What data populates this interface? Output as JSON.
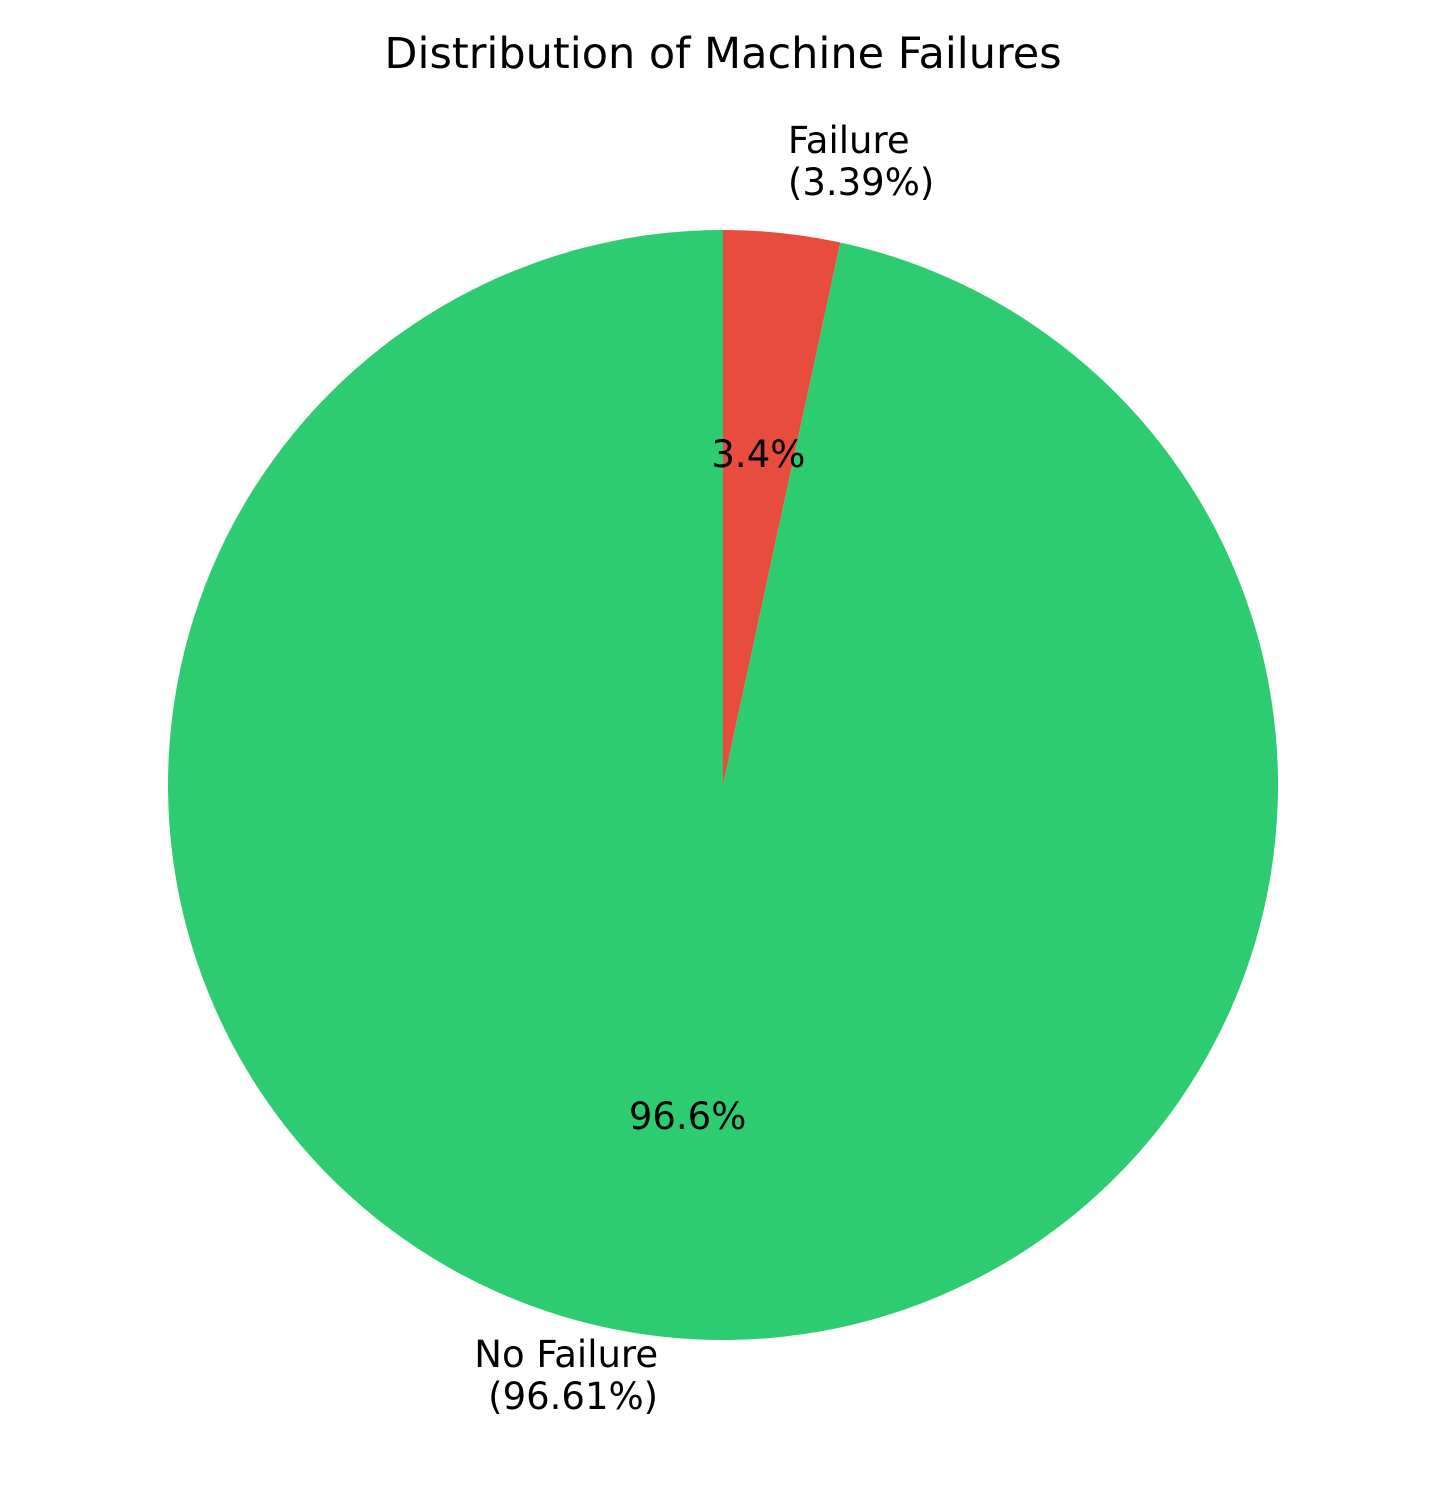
{
  "chart_data": {
    "type": "pie",
    "title": "Distribution of Machine Failures",
    "start_angle_deg": 90,
    "direction": "clockwise",
    "slices": [
      {
        "name": "Failure",
        "value": 3.39,
        "label_line1": "Failure",
        "label_line2": "(3.39%)",
        "pct_label": "3.4%",
        "color": "#e74c3c"
      },
      {
        "name": "No Failure",
        "value": 96.61,
        "label_line1": "No Failure",
        "label_line2": "(96.61%)",
        "pct_label": "96.6%",
        "color": "#2ecc71"
      }
    ]
  }
}
